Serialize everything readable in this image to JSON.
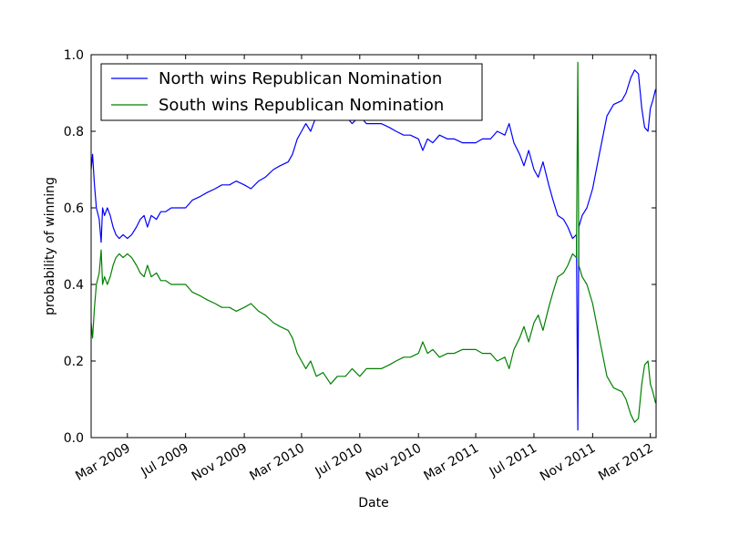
{
  "chart_data": {
    "type": "line",
    "title": "",
    "xlabel": "Date",
    "ylabel": "probability of winning",
    "xlim": [
      "2008-12-15",
      "2012-03-13"
    ],
    "ylim": [
      0.0,
      1.0
    ],
    "grid": false,
    "legend_position": "top-left",
    "x_ticks": [
      {
        "date": "2009-03-01",
        "label": "Mar 2009"
      },
      {
        "date": "2009-07-01",
        "label": "Jul 2009"
      },
      {
        "date": "2009-11-01",
        "label": "Nov 2009"
      },
      {
        "date": "2010-03-01",
        "label": "Mar 2010"
      },
      {
        "date": "2010-07-01",
        "label": "Jul 2010"
      },
      {
        "date": "2010-11-01",
        "label": "Nov 2010"
      },
      {
        "date": "2011-03-01",
        "label": "Mar 2011"
      },
      {
        "date": "2011-07-01",
        "label": "Jul 2011"
      },
      {
        "date": "2011-11-01",
        "label": "Nov 2011"
      },
      {
        "date": "2012-03-01",
        "label": "Mar 2012"
      }
    ],
    "y_ticks": [
      {
        "value": 0.0,
        "label": "0.0"
      },
      {
        "value": 0.2,
        "label": "0.2"
      },
      {
        "value": 0.4,
        "label": "0.4"
      },
      {
        "value": 0.6,
        "label": "0.6"
      },
      {
        "value": 0.8,
        "label": "0.8"
      },
      {
        "value": 1.0,
        "label": "1.0"
      }
    ],
    "series": [
      {
        "name": "North wins Republican Nomination",
        "color": "#0000ff",
        "points": [
          [
            "2008-12-15",
            0.7
          ],
          [
            "2008-12-18",
            0.74
          ],
          [
            "2008-12-22",
            0.66
          ],
          [
            "2008-12-26",
            0.6
          ],
          [
            "2009-01-01",
            0.57
          ],
          [
            "2009-01-05",
            0.51
          ],
          [
            "2009-01-08",
            0.6
          ],
          [
            "2009-01-12",
            0.58
          ],
          [
            "2009-01-18",
            0.6
          ],
          [
            "2009-01-24",
            0.58
          ],
          [
            "2009-01-30",
            0.55
          ],
          [
            "2009-02-05",
            0.53
          ],
          [
            "2009-02-12",
            0.52
          ],
          [
            "2009-02-20",
            0.53
          ],
          [
            "2009-03-01",
            0.52
          ],
          [
            "2009-03-10",
            0.53
          ],
          [
            "2009-03-20",
            0.55
          ],
          [
            "2009-03-28",
            0.57
          ],
          [
            "2009-04-05",
            0.58
          ],
          [
            "2009-04-12",
            0.55
          ],
          [
            "2009-04-20",
            0.58
          ],
          [
            "2009-05-01",
            0.57
          ],
          [
            "2009-05-10",
            0.59
          ],
          [
            "2009-05-20",
            0.59
          ],
          [
            "2009-06-01",
            0.6
          ],
          [
            "2009-06-15",
            0.6
          ],
          [
            "2009-07-01",
            0.6
          ],
          [
            "2009-07-15",
            0.62
          ],
          [
            "2009-08-01",
            0.63
          ],
          [
            "2009-08-15",
            0.64
          ],
          [
            "2009-09-01",
            0.65
          ],
          [
            "2009-09-15",
            0.66
          ],
          [
            "2009-10-01",
            0.66
          ],
          [
            "2009-10-15",
            0.67
          ],
          [
            "2009-11-01",
            0.66
          ],
          [
            "2009-11-15",
            0.65
          ],
          [
            "2009-12-01",
            0.67
          ],
          [
            "2009-12-15",
            0.68
          ],
          [
            "2010-01-01",
            0.7
          ],
          [
            "2010-01-15",
            0.71
          ],
          [
            "2010-02-01",
            0.72
          ],
          [
            "2010-02-10",
            0.74
          ],
          [
            "2010-02-20",
            0.78
          ],
          [
            "2010-03-01",
            0.8
          ],
          [
            "2010-03-10",
            0.82
          ],
          [
            "2010-03-20",
            0.8
          ],
          [
            "2010-04-01",
            0.84
          ],
          [
            "2010-04-15",
            0.83
          ],
          [
            "2010-05-01",
            0.86
          ],
          [
            "2010-05-15",
            0.84
          ],
          [
            "2010-06-01",
            0.84
          ],
          [
            "2010-06-15",
            0.82
          ],
          [
            "2010-07-01",
            0.84
          ],
          [
            "2010-07-15",
            0.82
          ],
          [
            "2010-08-01",
            0.82
          ],
          [
            "2010-08-15",
            0.82
          ],
          [
            "2010-09-01",
            0.81
          ],
          [
            "2010-09-15",
            0.8
          ],
          [
            "2010-10-01",
            0.79
          ],
          [
            "2010-10-15",
            0.79
          ],
          [
            "2010-11-01",
            0.78
          ],
          [
            "2010-11-10",
            0.75
          ],
          [
            "2010-11-20",
            0.78
          ],
          [
            "2010-12-01",
            0.77
          ],
          [
            "2010-12-15",
            0.79
          ],
          [
            "2011-01-01",
            0.78
          ],
          [
            "2011-01-15",
            0.78
          ],
          [
            "2011-02-01",
            0.77
          ],
          [
            "2011-02-15",
            0.77
          ],
          [
            "2011-03-01",
            0.77
          ],
          [
            "2011-03-15",
            0.78
          ],
          [
            "2011-04-01",
            0.78
          ],
          [
            "2011-04-15",
            0.8
          ],
          [
            "2011-05-01",
            0.79
          ],
          [
            "2011-05-10",
            0.82
          ],
          [
            "2011-05-20",
            0.77
          ],
          [
            "2011-06-01",
            0.74
          ],
          [
            "2011-06-10",
            0.71
          ],
          [
            "2011-06-20",
            0.75
          ],
          [
            "2011-07-01",
            0.7
          ],
          [
            "2011-07-10",
            0.68
          ],
          [
            "2011-07-20",
            0.72
          ],
          [
            "2011-08-01",
            0.66
          ],
          [
            "2011-08-10",
            0.62
          ],
          [
            "2011-08-20",
            0.58
          ],
          [
            "2011-09-01",
            0.57
          ],
          [
            "2011-09-10",
            0.55
          ],
          [
            "2011-09-20",
            0.52
          ],
          [
            "2011-09-28",
            0.53
          ],
          [
            "2011-10-01",
            0.02
          ],
          [
            "2011-10-03",
            0.55
          ],
          [
            "2011-10-10",
            0.58
          ],
          [
            "2011-10-20",
            0.6
          ],
          [
            "2011-11-01",
            0.65
          ],
          [
            "2011-11-15",
            0.74
          ],
          [
            "2011-12-01",
            0.84
          ],
          [
            "2011-12-15",
            0.87
          ],
          [
            "2012-01-01",
            0.88
          ],
          [
            "2012-01-10",
            0.9
          ],
          [
            "2012-01-20",
            0.94
          ],
          [
            "2012-01-28",
            0.96
          ],
          [
            "2012-02-05",
            0.95
          ],
          [
            "2012-02-12",
            0.86
          ],
          [
            "2012-02-18",
            0.81
          ],
          [
            "2012-02-25",
            0.8
          ],
          [
            "2012-03-01",
            0.86
          ],
          [
            "2012-03-06",
            0.88
          ],
          [
            "2012-03-12",
            0.91
          ]
        ]
      },
      {
        "name": "South wins Republican Nomination",
        "color": "#008000",
        "points": [
          [
            "2008-12-15",
            0.3
          ],
          [
            "2008-12-18",
            0.26
          ],
          [
            "2008-12-22",
            0.34
          ],
          [
            "2008-12-26",
            0.4
          ],
          [
            "2009-01-01",
            0.43
          ],
          [
            "2009-01-05",
            0.49
          ],
          [
            "2009-01-08",
            0.4
          ],
          [
            "2009-01-12",
            0.42
          ],
          [
            "2009-01-18",
            0.4
          ],
          [
            "2009-01-24",
            0.42
          ],
          [
            "2009-01-30",
            0.45
          ],
          [
            "2009-02-05",
            0.47
          ],
          [
            "2009-02-12",
            0.48
          ],
          [
            "2009-02-20",
            0.47
          ],
          [
            "2009-03-01",
            0.48
          ],
          [
            "2009-03-10",
            0.47
          ],
          [
            "2009-03-20",
            0.45
          ],
          [
            "2009-03-28",
            0.43
          ],
          [
            "2009-04-05",
            0.42
          ],
          [
            "2009-04-12",
            0.45
          ],
          [
            "2009-04-20",
            0.42
          ],
          [
            "2009-05-01",
            0.43
          ],
          [
            "2009-05-10",
            0.41
          ],
          [
            "2009-05-20",
            0.41
          ],
          [
            "2009-06-01",
            0.4
          ],
          [
            "2009-06-15",
            0.4
          ],
          [
            "2009-07-01",
            0.4
          ],
          [
            "2009-07-15",
            0.38
          ],
          [
            "2009-08-01",
            0.37
          ],
          [
            "2009-08-15",
            0.36
          ],
          [
            "2009-09-01",
            0.35
          ],
          [
            "2009-09-15",
            0.34
          ],
          [
            "2009-10-01",
            0.34
          ],
          [
            "2009-10-15",
            0.33
          ],
          [
            "2009-11-01",
            0.34
          ],
          [
            "2009-11-15",
            0.35
          ],
          [
            "2009-12-01",
            0.33
          ],
          [
            "2009-12-15",
            0.32
          ],
          [
            "2010-01-01",
            0.3
          ],
          [
            "2010-01-15",
            0.29
          ],
          [
            "2010-02-01",
            0.28
          ],
          [
            "2010-02-10",
            0.26
          ],
          [
            "2010-02-20",
            0.22
          ],
          [
            "2010-03-01",
            0.2
          ],
          [
            "2010-03-10",
            0.18
          ],
          [
            "2010-03-20",
            0.2
          ],
          [
            "2010-04-01",
            0.16
          ],
          [
            "2010-04-15",
            0.17
          ],
          [
            "2010-05-01",
            0.14
          ],
          [
            "2010-05-15",
            0.16
          ],
          [
            "2010-06-01",
            0.16
          ],
          [
            "2010-06-15",
            0.18
          ],
          [
            "2010-07-01",
            0.16
          ],
          [
            "2010-07-15",
            0.18
          ],
          [
            "2010-08-01",
            0.18
          ],
          [
            "2010-08-15",
            0.18
          ],
          [
            "2010-09-01",
            0.19
          ],
          [
            "2010-09-15",
            0.2
          ],
          [
            "2010-10-01",
            0.21
          ],
          [
            "2010-10-15",
            0.21
          ],
          [
            "2010-11-01",
            0.22
          ],
          [
            "2010-11-10",
            0.25
          ],
          [
            "2010-11-20",
            0.22
          ],
          [
            "2010-12-01",
            0.23
          ],
          [
            "2010-12-15",
            0.21
          ],
          [
            "2011-01-01",
            0.22
          ],
          [
            "2011-01-15",
            0.22
          ],
          [
            "2011-02-01",
            0.23
          ],
          [
            "2011-02-15",
            0.23
          ],
          [
            "2011-03-01",
            0.23
          ],
          [
            "2011-03-15",
            0.22
          ],
          [
            "2011-04-01",
            0.22
          ],
          [
            "2011-04-15",
            0.2
          ],
          [
            "2011-05-01",
            0.21
          ],
          [
            "2011-05-10",
            0.18
          ],
          [
            "2011-05-20",
            0.23
          ],
          [
            "2011-06-01",
            0.26
          ],
          [
            "2011-06-10",
            0.29
          ],
          [
            "2011-06-20",
            0.25
          ],
          [
            "2011-07-01",
            0.3
          ],
          [
            "2011-07-10",
            0.32
          ],
          [
            "2011-07-20",
            0.28
          ],
          [
            "2011-08-01",
            0.34
          ],
          [
            "2011-08-10",
            0.38
          ],
          [
            "2011-08-20",
            0.42
          ],
          [
            "2011-09-01",
            0.43
          ],
          [
            "2011-09-10",
            0.45
          ],
          [
            "2011-09-20",
            0.48
          ],
          [
            "2011-09-28",
            0.47
          ],
          [
            "2011-10-01",
            0.98
          ],
          [
            "2011-10-03",
            0.45
          ],
          [
            "2011-10-10",
            0.42
          ],
          [
            "2011-10-20",
            0.4
          ],
          [
            "2011-11-01",
            0.35
          ],
          [
            "2011-11-15",
            0.26
          ],
          [
            "2011-12-01",
            0.16
          ],
          [
            "2011-12-15",
            0.13
          ],
          [
            "2012-01-01",
            0.12
          ],
          [
            "2012-01-10",
            0.1
          ],
          [
            "2012-01-20",
            0.06
          ],
          [
            "2012-01-28",
            0.04
          ],
          [
            "2012-02-05",
            0.05
          ],
          [
            "2012-02-12",
            0.14
          ],
          [
            "2012-02-18",
            0.19
          ],
          [
            "2012-02-25",
            0.2
          ],
          [
            "2012-03-01",
            0.14
          ],
          [
            "2012-03-06",
            0.12
          ],
          [
            "2012-03-12",
            0.09
          ]
        ]
      }
    ]
  }
}
